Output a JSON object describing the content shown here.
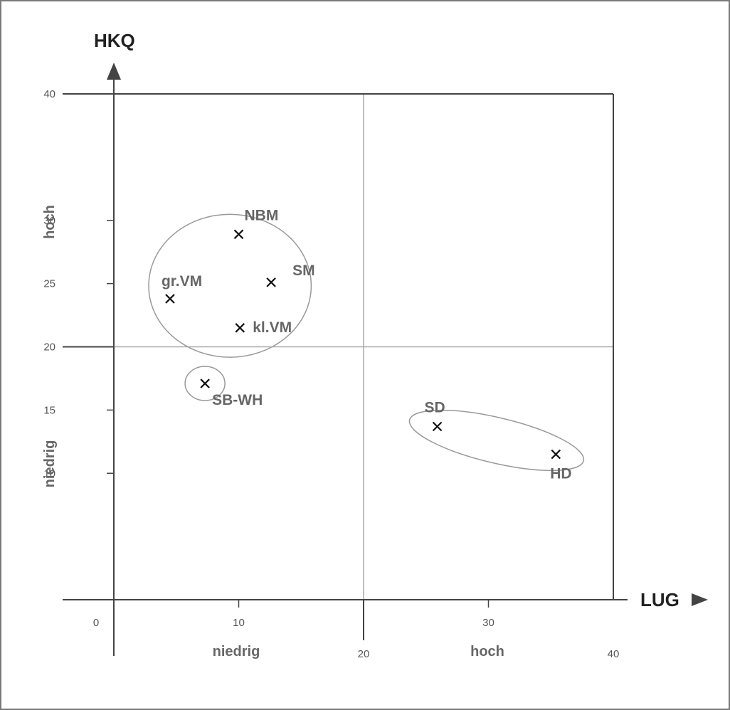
{
  "chart_data": {
    "type": "scatter",
    "x": {
      "label": "LUG",
      "range": [
        0,
        40
      ],
      "ticks": [
        "0",
        "10",
        "20",
        "30",
        "40"
      ],
      "levels": [
        "niedrig",
        "hoch"
      ]
    },
    "y": {
      "label": "HKQ",
      "range": [
        0,
        40
      ],
      "ticks": [
        "10",
        "15",
        "20",
        "25",
        "30",
        "40"
      ],
      "levels": [
        "niedrig",
        "hoch"
      ]
    },
    "divider": {
      "x": 20,
      "y": 20
    },
    "points": [
      {
        "label": "NBM",
        "x": 10.0,
        "y": 28.9
      },
      {
        "label": "SM",
        "x": 12.6,
        "y": 25.1
      },
      {
        "label": "gr.VM",
        "x": 4.5,
        "y": 23.8
      },
      {
        "label": "kl.VM",
        "x": 10.1,
        "y": 21.5
      },
      {
        "label": "SB-WH",
        "x": 7.3,
        "y": 17.1
      },
      {
        "label": "SD",
        "x": 25.9,
        "y": 13.7
      },
      {
        "label": "HD",
        "x": 35.4,
        "y": 11.5
      }
    ],
    "clusters": [
      {
        "members": [
          "NBM",
          "SM",
          "gr.VM",
          "kl.VM"
        ]
      },
      {
        "members": [
          "SB-WH"
        ]
      },
      {
        "members": [
          "SD",
          "HD"
        ]
      }
    ],
    "grid": false,
    "colors": {
      "axis": "#444444",
      "divider": "#aaaaaa",
      "cluster": "#999999",
      "marker": "#111111",
      "labels": "#666666"
    }
  }
}
